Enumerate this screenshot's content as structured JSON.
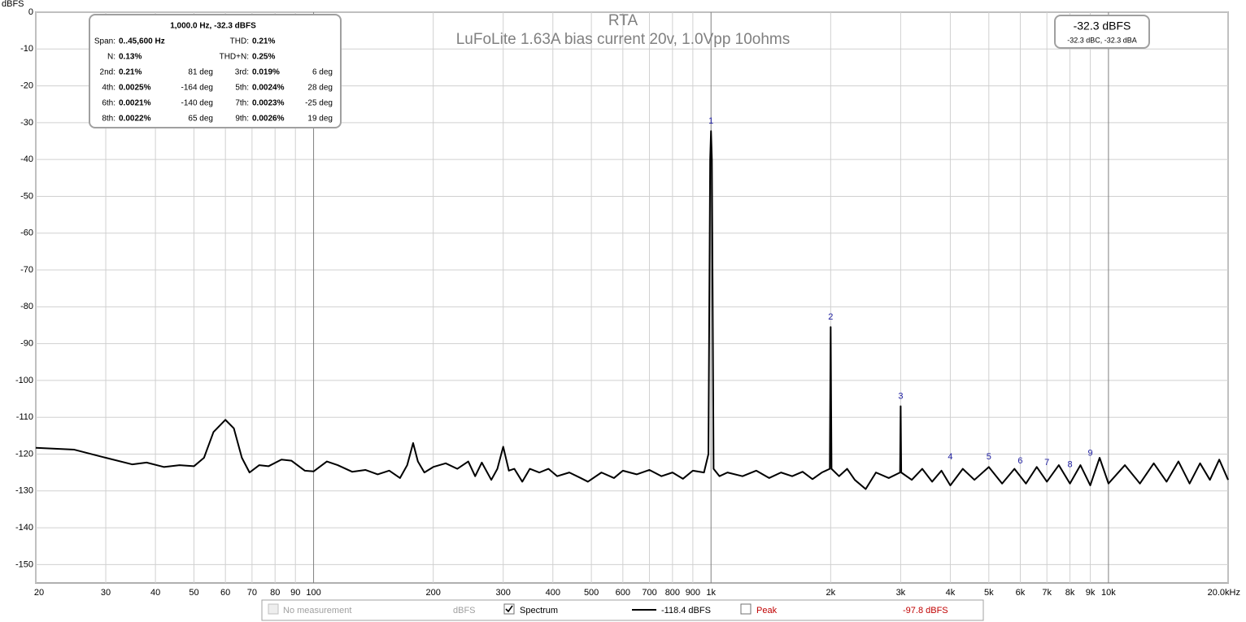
{
  "chart_data": {
    "type": "line",
    "title": "RTA",
    "subtitle": "LuFoLite  1.63A bias current 20v, 1.0Vpp 10ohms",
    "y_label": "dBFS",
    "xlim": [
      20,
      20000
    ],
    "ylim": [
      -155,
      0
    ],
    "log_x": true,
    "grid": true,
    "xticks": [
      20,
      30,
      40,
      50,
      60,
      70,
      80,
      90,
      100,
      200,
      300,
      400,
      500,
      600,
      700,
      800,
      900,
      {
        "value": 1000,
        "label": "1k"
      },
      {
        "value": 2000,
        "label": "2k"
      },
      {
        "value": 3000,
        "label": "3k"
      },
      {
        "value": 4000,
        "label": "4k"
      },
      {
        "value": 5000,
        "label": "5k"
      },
      {
        "value": 6000,
        "label": "6k"
      },
      {
        "value": 7000,
        "label": "7k"
      },
      {
        "value": 8000,
        "label": "8k"
      },
      {
        "value": 9000,
        "label": "9k"
      },
      {
        "value": 10000,
        "label": "10k"
      },
      {
        "value": 20000,
        "label": "20.0kHz"
      }
    ],
    "yticks": [
      0,
      -10,
      -20,
      -30,
      -40,
      -50,
      -60,
      -70,
      -80,
      -90,
      -100,
      -110,
      -120,
      -130,
      -140,
      -150
    ],
    "x": [
      20,
      25,
      30,
      35,
      38,
      42,
      46,
      50,
      53,
      56,
      60,
      63,
      66,
      69,
      73,
      77,
      83,
      88,
      95,
      100,
      108,
      115,
      125,
      135,
      145,
      155,
      165,
      172,
      178,
      183,
      190,
      200,
      215,
      230,
      245,
      255,
      265,
      280,
      290,
      300,
      310,
      320,
      335,
      350,
      370,
      390,
      410,
      440,
      470,
      490,
      530,
      570,
      600,
      650,
      700,
      750,
      800,
      850,
      900,
      960,
      985,
      995,
      1000,
      1005,
      1015,
      1050,
      1100,
      1200,
      1300,
      1400,
      1500,
      1600,
      1700,
      1800,
      1900,
      1990,
      2000,
      2010,
      2100,
      2200,
      2300,
      2450,
      2600,
      2800,
      2990,
      3000,
      3010,
      3200,
      3400,
      3600,
      3800,
      4000,
      4300,
      4600,
      5000,
      5400,
      5800,
      6200,
      6600,
      7000,
      7500,
      8000,
      8500,
      9000,
      9500,
      10000,
      11000,
      12000,
      13000,
      14000,
      15000,
      16000,
      17000,
      18000,
      19000,
      20000
    ],
    "series": [
      {
        "name": "Spectrum",
        "color": "#000000",
        "checked": true,
        "level": "-118.4 dBFS",
        "values": [
          -118.3,
          -118.8,
          -121,
          -122.8,
          -122.3,
          -123.5,
          -123,
          -123.3,
          -121,
          -114,
          -110.7,
          -113,
          -121,
          -125,
          -123,
          -123.3,
          -121.5,
          -121.8,
          -124.5,
          -124.7,
          -122,
          -123,
          -124.8,
          -124.3,
          -125.5,
          -124.5,
          -126.5,
          -123,
          -117,
          -122,
          -125,
          -123.5,
          -122.5,
          -124,
          -122,
          -126,
          -122.3,
          -127,
          -124,
          -118,
          -124.5,
          -124,
          -127.5,
          -124,
          -125,
          -124,
          -126,
          -125,
          -126.5,
          -127.5,
          -125,
          -126.5,
          -124.5,
          -125.5,
          -124.3,
          -126,
          -125,
          -126.7,
          -124.5,
          -125,
          -120,
          -40,
          -32.3,
          -40,
          -124,
          -126,
          -125,
          -126,
          -124.5,
          -126.5,
          -125,
          -126,
          -124.8,
          -126.8,
          -125,
          -124,
          -85.5,
          -124,
          -126,
          -124,
          -127,
          -129.5,
          -125,
          -126.5,
          -125,
          -107,
          -125,
          -127,
          -124,
          -127.5,
          -124.5,
          -128.5,
          -124,
          -127,
          -123.5,
          -128,
          -124,
          -128,
          -123.5,
          -127.5,
          -123,
          -128,
          -123,
          -128.5,
          -121,
          -128,
          -123,
          -128,
          -122.5,
          -127.5,
          -122,
          -128,
          -122.5,
          -127,
          -121.5,
          -127
        ]
      }
    ],
    "legend_extra": [
      {
        "name": "No measurement",
        "level": "dBFS",
        "checked": false,
        "enabled": false
      },
      {
        "name": "Peak",
        "level": "-97.8 dBFS",
        "checked": false,
        "enabled": true,
        "color": "#c00000"
      }
    ],
    "harmonic_markers": [
      {
        "label": "1",
        "x": 1000,
        "y": -32.3
      },
      {
        "label": "2",
        "x": 2000,
        "y": -85.5
      },
      {
        "label": "3",
        "x": 3000,
        "y": -107
      },
      {
        "label": "4",
        "x": 4000,
        "y": -123.5
      },
      {
        "label": "5",
        "x": 5000,
        "y": -123.5
      },
      {
        "label": "6",
        "x": 6000,
        "y": -124.5
      },
      {
        "label": "7",
        "x": 7000,
        "y": -125
      },
      {
        "label": "8",
        "x": 8000,
        "y": -125.5
      },
      {
        "label": "9",
        "x": 9000,
        "y": -122.5
      }
    ],
    "info_box": {
      "header": "1,000.0 Hz, -32.3 dBFS",
      "rows": [
        [
          "Span:",
          "0..45,600 Hz",
          "THD:",
          "0.21%"
        ],
        [
          "N:",
          "0.13%",
          "THD+N:",
          "0.25%"
        ],
        [
          "2nd:",
          "0.21%",
          "81 deg",
          "3rd:",
          "0.019%",
          "6 deg"
        ],
        [
          "4th:",
          "0.0025%",
          "-164 deg",
          "5th:",
          "0.0024%",
          "28 deg"
        ],
        [
          "6th:",
          "0.0021%",
          "-140 deg",
          "7th:",
          "0.0023%",
          "-25 deg"
        ],
        [
          "8th:",
          "0.0022%",
          "65 deg",
          "9th:",
          "0.0026%",
          "19 deg"
        ]
      ]
    },
    "level_box": {
      "main": "-32.3 dBFS",
      "sub": "-32.3 dBC, -32.3 dBA"
    }
  }
}
